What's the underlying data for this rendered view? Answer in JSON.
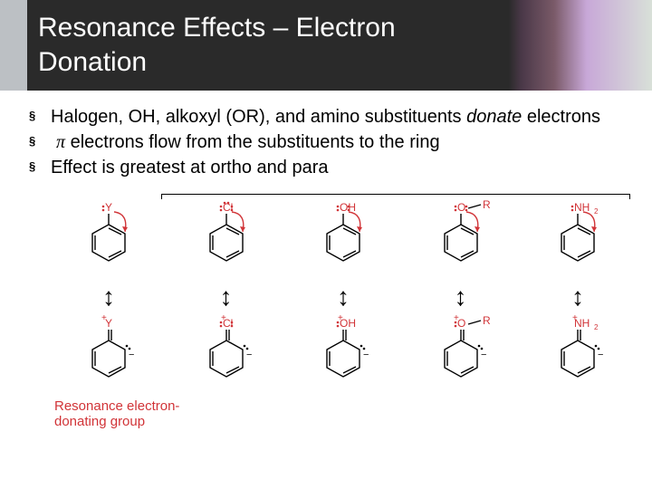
{
  "header": {
    "title_line1": "Resonance Effects – Electron",
    "title_line2": "Donation"
  },
  "bullets": [
    {
      "pre": "Halogen, OH, alkoxyl (OR), and amino substituents ",
      "italic": "donate",
      "post": " electrons"
    },
    {
      "pre": "",
      "pi": "π",
      "post": " electrons flow from the substituents to the ring"
    },
    {
      "pre": "Effect is greatest at ortho and para",
      "post": ""
    }
  ],
  "diagram": {
    "columns": [
      {
        "top_label": "Y",
        "top_lp": 1,
        "bot_label": "Y",
        "bot_charge": "+",
        "color": "#e04040"
      },
      {
        "top_label": "Cl",
        "top_lp": 3,
        "bot_label": "Cl",
        "bot_charge": "+",
        "bot_lp": 2,
        "color": "#d13438"
      },
      {
        "top_label": "OH",
        "top_lp": 2,
        "bot_label": "OH",
        "bot_charge": "+",
        "bot_lp": 1,
        "color": "#d13438"
      },
      {
        "top_label": "O",
        "top_extra": "R",
        "top_lp": 2,
        "bot_label": "O",
        "bot_extra": "R",
        "bot_charge": "+",
        "bot_lp": 1,
        "color": "#d13438"
      },
      {
        "top_label": "NH",
        "top_sub": "2",
        "top_lp": 1,
        "bot_label": "NH",
        "bot_sub": "2",
        "bot_charge": "+",
        "color": "#d13438"
      }
    ],
    "caption": "Resonance electron-\ndonating group"
  },
  "style": {
    "title_color": "#ffffff",
    "title_fontsize": 30,
    "bullet_fontsize": 20,
    "atom_color": "#d13438",
    "caption_color": "#d13438",
    "bg": "#ffffff"
  }
}
